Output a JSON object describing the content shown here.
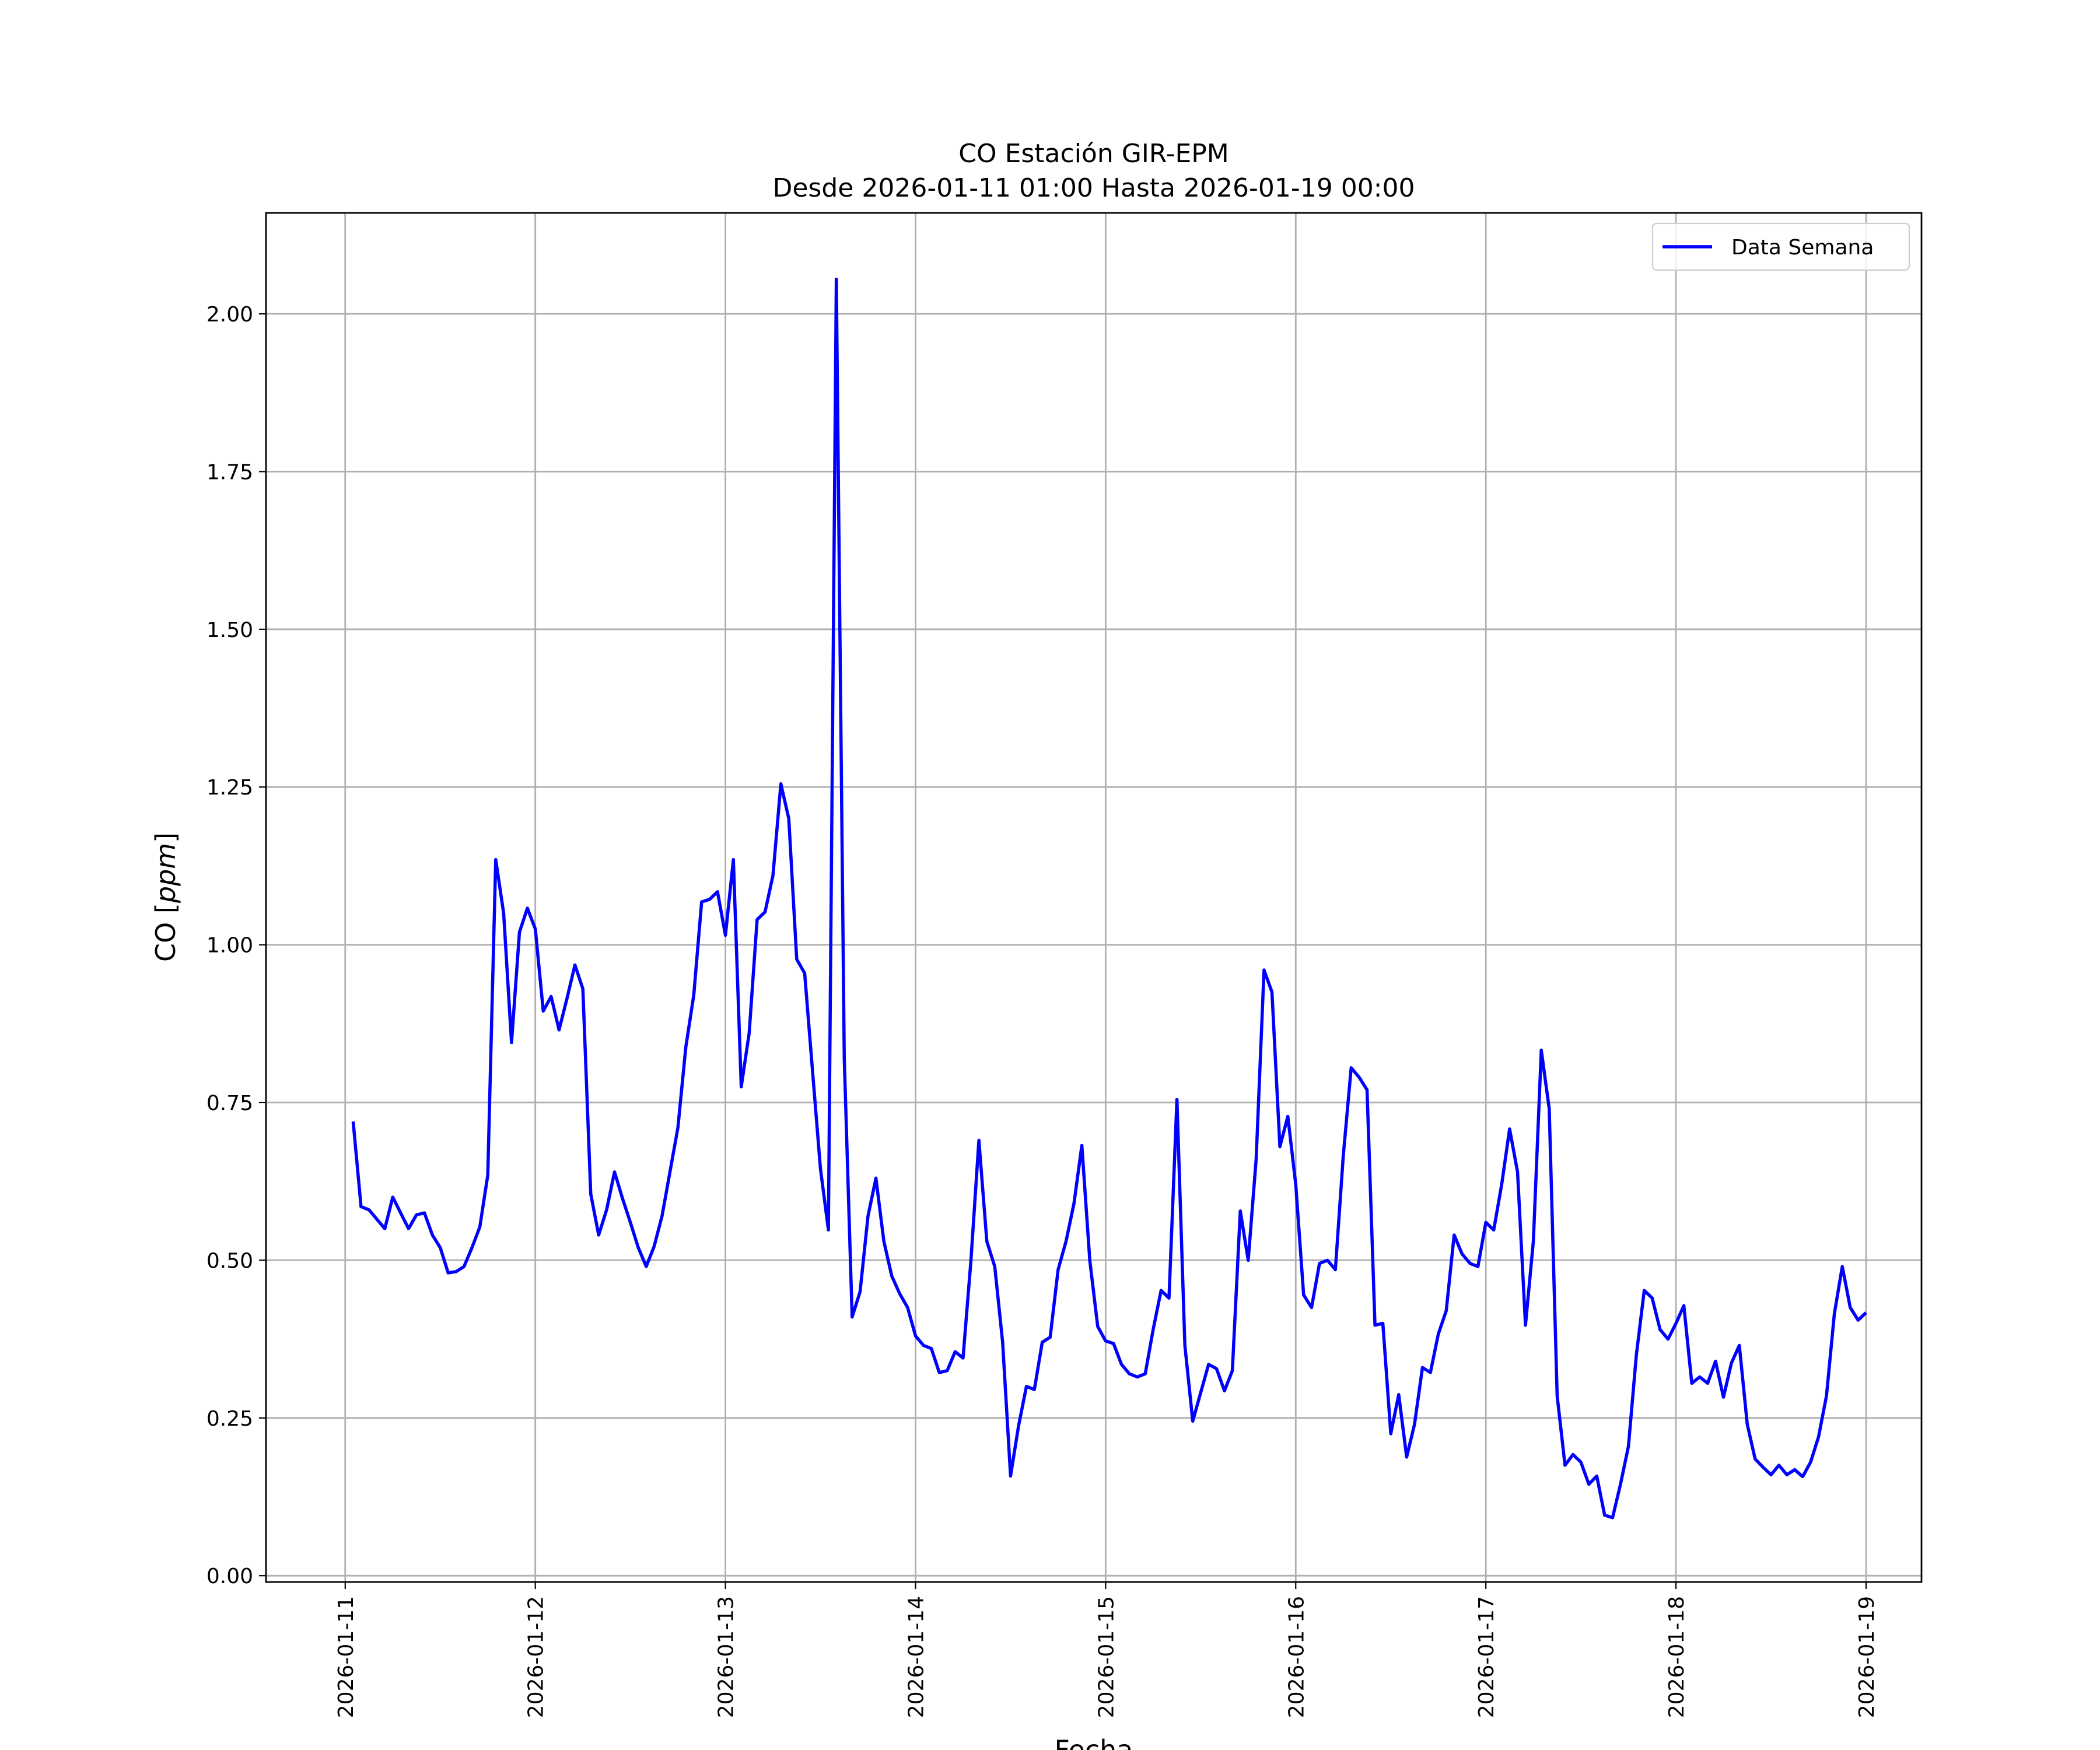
{
  "chart_data": {
    "type": "line",
    "title": "CO Estación GIR-EPM",
    "subtitle": "Desde 2026-01-11 01:00 Hasta 2026-01-19 00:00",
    "xlabel": "Fecha",
    "ylabel": "CO",
    "ylabel_unit": "ppm",
    "xlim": [
      "2026-01-10 14:00",
      "2026-01-19 07:00"
    ],
    "ylim": [
      -0.01,
      2.16
    ],
    "x_ticks": [
      "2026-01-11",
      "2026-01-12",
      "2026-01-13",
      "2026-01-14",
      "2026-01-15",
      "2026-01-16",
      "2026-01-17",
      "2026-01-18",
      "2026-01-19"
    ],
    "y_ticks": [
      "0.00",
      "0.25",
      "0.50",
      "0.75",
      "1.00",
      "1.25",
      "1.50",
      "1.75",
      "2.00"
    ],
    "grid": true,
    "legend_position": "upper right",
    "x_start": "2026-01-11 01:00",
    "x_step_hours": 1,
    "series": [
      {
        "name": "Data Semana",
        "color": "#0000ff",
        "values": [
          0.72,
          0.585,
          0.58,
          0.565,
          0.55,
          0.6,
          0.575,
          0.55,
          0.572,
          0.575,
          0.54,
          0.52,
          0.48,
          0.482,
          0.49,
          0.52,
          0.553,
          0.635,
          1.135,
          1.05,
          0.845,
          1.02,
          1.058,
          1.025,
          0.895,
          0.918,
          0.865,
          0.915,
          0.968,
          0.93,
          0.605,
          0.54,
          0.58,
          0.64,
          0.598,
          0.56,
          0.52,
          0.49,
          0.522,
          0.57,
          0.64,
          0.71,
          0.838,
          0.92,
          1.068,
          1.072,
          1.084,
          1.015,
          1.135,
          0.775,
          0.86,
          1.04,
          1.052,
          1.11,
          1.255,
          1.2,
          0.977,
          0.955,
          0.8,
          0.645,
          0.548,
          2.055,
          0.82,
          0.41,
          0.45,
          0.57,
          0.63,
          0.53,
          0.475,
          0.447,
          0.425,
          0.38,
          0.365,
          0.36,
          0.322,
          0.325,
          0.355,
          0.345,
          0.5,
          0.69,
          0.53,
          0.49,
          0.37,
          0.158,
          0.237,
          0.3,
          0.295,
          0.37,
          0.378,
          0.485,
          0.53,
          0.59,
          0.682,
          0.5,
          0.395,
          0.372,
          0.368,
          0.335,
          0.32,
          0.315,
          0.32,
          0.39,
          0.452,
          0.44,
          0.755,
          0.365,
          0.245,
          0.29,
          0.335,
          0.328,
          0.293,
          0.325,
          0.578,
          0.5,
          0.66,
          0.96,
          0.925,
          0.68,
          0.728,
          0.62,
          0.445,
          0.425,
          0.495,
          0.5,
          0.485,
          0.665,
          0.805,
          0.79,
          0.77,
          0.397,
          0.4,
          0.225,
          0.287,
          0.188,
          0.24,
          0.33,
          0.322,
          0.383,
          0.42,
          0.54,
          0.51,
          0.495,
          0.49,
          0.56,
          0.548,
          0.62,
          0.708,
          0.64,
          0.397,
          0.53,
          0.833,
          0.74,
          0.285,
          0.175,
          0.192,
          0.18,
          0.145,
          0.158,
          0.096,
          0.092,
          0.145,
          0.205,
          0.35,
          0.452,
          0.44,
          0.39,
          0.375,
          0.4,
          0.428,
          0.305,
          0.315,
          0.305,
          0.34,
          0.283,
          0.337,
          0.365,
          0.24,
          0.185,
          0.172,
          0.16,
          0.175,
          0.16,
          0.168,
          0.157,
          0.18,
          0.22,
          0.285,
          0.415,
          0.49,
          0.425,
          0.405,
          0.417
        ]
      }
    ]
  }
}
